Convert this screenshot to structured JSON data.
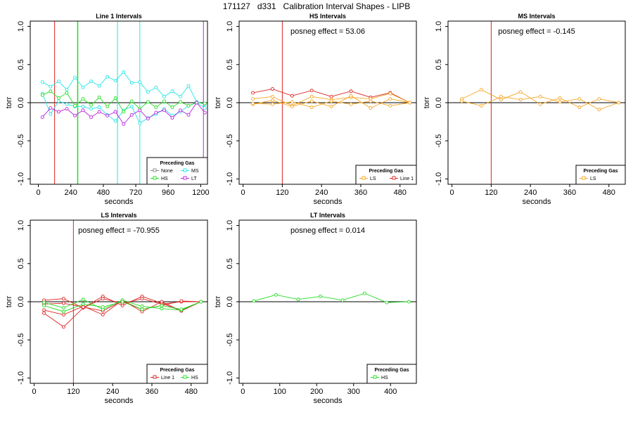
{
  "figure_title": "171127   d331   Calibration Interval Shapes - LIPB",
  "colors": {
    "None": "#888888",
    "Line 1": "#dd2222",
    "HS": "#22dd22",
    "MS": "#22e6e6",
    "LT": "#bb22dd",
    "LS": "#f5a623",
    "vline": "#b03040"
  },
  "chart_data": [
    {
      "type": "line",
      "title": "Line 1 Intervals",
      "xlabel": "seconds",
      "ylabel": "torr",
      "xlim": [
        -60,
        1250
      ],
      "ylim": [
        -1.07,
        1.07
      ],
      "xticks": [
        0,
        240,
        480,
        720,
        960,
        1200
      ],
      "yticks": [
        -1.0,
        -0.5,
        0.0,
        0.5,
        1.0
      ],
      "annotation": "",
      "vlines": [
        {
          "x": 120,
          "color": "Line 1"
        },
        {
          "x": 290,
          "color": "HS"
        },
        {
          "x": 292,
          "color": "HS"
        },
        {
          "x": 290,
          "color": "HS"
        },
        {
          "x": 585,
          "color": "MS"
        },
        {
          "x": 750,
          "color": "MS"
        },
        {
          "x": 1220,
          "color": "LT"
        }
      ],
      "legend": {
        "title": "Preceding Gas",
        "entries": [
          "None",
          "MS",
          "HS",
          "LT"
        ]
      },
      "series": [
        {
          "name": "MS",
          "x": [
            30,
            90,
            150,
            210,
            270,
            330,
            390,
            450,
            510,
            570,
            630,
            690,
            750,
            810,
            870,
            930,
            990,
            1050,
            1110,
            1170,
            1230
          ],
          "y": [
            0.27,
            0.21,
            0.28,
            0.17,
            0.33,
            0.2,
            0.28,
            0.22,
            0.34,
            0.29,
            0.4,
            0.26,
            0.27,
            0.14,
            0.2,
            0.08,
            0.15,
            0.08,
            0.22,
            0.01,
            -0.02
          ]
        },
        {
          "name": "MS",
          "x": [
            30,
            90,
            150,
            210,
            270,
            330,
            390,
            450,
            510,
            570,
            630,
            690,
            750,
            810,
            870,
            930,
            990,
            1050,
            1110,
            1170,
            1230
          ],
          "y": [
            0.12,
            -0.15,
            0.02,
            -0.02,
            -0.05,
            -0.05,
            -0.08,
            -0.06,
            -0.16,
            -0.24,
            -0.1,
            -0.05,
            -0.27,
            -0.2,
            -0.15,
            -0.08,
            -0.17,
            -0.12,
            -0.04,
            0.0,
            -0.07
          ]
        },
        {
          "name": "HS",
          "x": [
            30,
            90,
            150,
            210,
            270,
            330,
            390,
            450,
            510,
            570,
            630,
            690,
            750,
            810,
            870,
            930,
            990,
            1050,
            1110,
            1170,
            1230
          ],
          "y": [
            0.1,
            0.15,
            0.06,
            0.13,
            -0.04,
            0.05,
            -0.03,
            0.07,
            -0.05,
            0.06,
            -0.12,
            0.02,
            -0.08,
            0.01,
            -0.06,
            0.02,
            -0.06,
            0.01,
            -0.04,
            0.0,
            -0.01
          ]
        },
        {
          "name": "LT",
          "x": [
            30,
            90,
            150,
            210,
            270,
            330,
            390,
            450,
            510,
            570,
            630,
            690,
            750,
            810,
            870,
            930,
            990,
            1050,
            1110,
            1170,
            1230
          ],
          "y": [
            -0.19,
            -0.07,
            -0.12,
            -0.08,
            -0.17,
            -0.1,
            -0.19,
            -0.12,
            -0.17,
            -0.12,
            -0.28,
            -0.16,
            -0.1,
            -0.21,
            -0.13,
            -0.1,
            -0.2,
            -0.1,
            -0.16,
            0.0,
            -0.13
          ]
        }
      ]
    },
    {
      "type": "line",
      "title": "HS Intervals",
      "xlabel": "seconds",
      "ylabel": "torr",
      "xlim": [
        -12,
        530
      ],
      "ylim": [
        -1.07,
        1.07
      ],
      "xticks": [
        0,
        120,
        240,
        360,
        480
      ],
      "yticks": [
        -1.0,
        -0.5,
        0.0,
        0.5,
        1.0
      ],
      "annotation": "posneg effect = 53.06",
      "vlines": [
        {
          "x": 120,
          "color": "Line 1"
        }
      ],
      "legend": {
        "title": "Preceding Gas",
        "entries": [
          "LS",
          "Line 1"
        ]
      },
      "series": [
        {
          "name": "Line 1",
          "x": [
            30,
            90,
            150,
            210,
            270,
            330,
            390,
            450,
            510
          ],
          "y": [
            0.13,
            0.18,
            0.09,
            0.16,
            0.08,
            0.15,
            0.07,
            0.13,
            0.0
          ]
        },
        {
          "name": "LS",
          "x": [
            30,
            90,
            150,
            210,
            270,
            330,
            390,
            450,
            510
          ],
          "y": [
            0.05,
            0.08,
            -0.04,
            0.08,
            0.04,
            0.07,
            0.05,
            0.12,
            0.0
          ]
        },
        {
          "name": "LS",
          "x": [
            30,
            90,
            150,
            210,
            270,
            330,
            390,
            450,
            510
          ],
          "y": [
            -0.02,
            0.03,
            -0.05,
            0.02,
            -0.05,
            0.09,
            -0.07,
            0.05,
            0.0
          ]
        },
        {
          "name": "LS",
          "x": [
            30,
            90,
            150,
            210,
            270,
            330,
            390,
            450,
            510
          ],
          "y": [
            -0.01,
            -0.02,
            0.01,
            -0.06,
            0.02,
            -0.02,
            0.02,
            -0.04,
            0.0
          ]
        }
      ]
    },
    {
      "type": "line",
      "title": "MS Intervals",
      "xlabel": "seconds",
      "ylabel": "torr",
      "xlim": [
        -12,
        530
      ],
      "ylim": [
        -1.07,
        1.07
      ],
      "xticks": [
        0,
        120,
        240,
        360,
        480
      ],
      "yticks": [
        -1.0,
        -0.5,
        0.0,
        0.5,
        1.0
      ],
      "annotation": "posneg effect = -0.145",
      "vlines": [
        {
          "x": 120,
          "color": "Line 1"
        }
      ],
      "legend": {
        "title": "Preceding Gas",
        "entries": [
          "LS"
        ]
      },
      "series": [
        {
          "name": "LS",
          "x": [
            30,
            90,
            150,
            210,
            270,
            330,
            390,
            450,
            510
          ],
          "y": [
            0.05,
            0.17,
            0.04,
            0.14,
            -0.02,
            0.06,
            -0.06,
            0.05,
            0.0
          ]
        },
        {
          "name": "LS",
          "x": [
            30,
            90,
            150,
            210,
            270,
            330,
            390,
            450,
            510
          ],
          "y": [
            0.02,
            -0.04,
            0.08,
            0.04,
            0.08,
            0.01,
            0.05,
            -0.09,
            0.0
          ]
        }
      ]
    },
    {
      "type": "line",
      "title": "LS Intervals",
      "xlabel": "seconds",
      "ylabel": "torr",
      "xlim": [
        -12,
        530
      ],
      "ylim": [
        -1.07,
        1.07
      ],
      "xticks": [
        0,
        120,
        240,
        360,
        480
      ],
      "yticks": [
        -1.0,
        -0.5,
        0.0,
        0.5,
        1.0
      ],
      "annotation": "posneg effect = -70.955",
      "vlines": [
        {
          "x": 120,
          "color": "Line 1"
        }
      ],
      "legend": {
        "title": "Preceding Gas",
        "entries": [
          "Line 1",
          "HS"
        ]
      },
      "series": [
        {
          "name": "Line 1",
          "x": [
            30,
            90,
            150,
            210,
            270,
            330,
            390,
            450,
            510
          ],
          "y": [
            0.02,
            0.04,
            -0.08,
            0.07,
            -0.05,
            0.07,
            -0.02,
            -0.12,
            0.0
          ]
        },
        {
          "name": "Line 1",
          "x": [
            30,
            90,
            150,
            210,
            270,
            330,
            390,
            450,
            510
          ],
          "y": [
            -0.15,
            -0.33,
            -0.08,
            0.04,
            -0.02,
            0.04,
            -0.03,
            0.0,
            0.0
          ]
        },
        {
          "name": "Line 1",
          "x": [
            30,
            90,
            150,
            210,
            270,
            330,
            390,
            450,
            510
          ],
          "y": [
            -0.11,
            -0.17,
            -0.06,
            -0.17,
            0.02,
            -0.13,
            0.0,
            -0.12,
            0.0
          ]
        },
        {
          "name": "Line 1",
          "x": [
            30,
            90,
            150,
            210,
            270,
            330,
            390,
            450,
            510
          ],
          "y": [
            -0.03,
            -0.02,
            -0.07,
            -0.12,
            0.01,
            -0.1,
            -0.05,
            0.01,
            0.0
          ]
        },
        {
          "name": "HS",
          "x": [
            30,
            90,
            150,
            210,
            270,
            330,
            390,
            450,
            510
          ],
          "y": [
            -0.01,
            -0.08,
            0.03,
            -0.1,
            0.02,
            -0.06,
            -0.09,
            -0.11,
            0.0
          ]
        },
        {
          "name": "HS",
          "x": [
            30,
            90,
            150,
            210,
            270,
            330,
            390,
            450,
            510
          ],
          "y": [
            -0.05,
            -0.13,
            -0.03,
            -0.07,
            0.0,
            -0.1,
            -0.05,
            -0.1,
            0.0
          ]
        }
      ]
    },
    {
      "type": "line",
      "title": "LT Intervals",
      "xlabel": "seconds",
      "ylabel": "torr",
      "xlim": [
        -10,
        470
      ],
      "ylim": [
        -1.07,
        1.07
      ],
      "xticks": [
        0,
        100,
        200,
        300,
        400
      ],
      "yticks": [
        -1.0,
        -0.5,
        0.0,
        0.5,
        1.0
      ],
      "annotation": "posneg effect = 0.014",
      "vlines": [],
      "legend": {
        "title": "Preceding Gas",
        "entries": [
          "HS"
        ]
      },
      "series": [
        {
          "name": "HS",
          "x": [
            30,
            90,
            150,
            210,
            270,
            330,
            390,
            450
          ],
          "y": [
            0.01,
            0.09,
            0.03,
            0.07,
            0.02,
            0.11,
            -0.01,
            0.0
          ]
        }
      ]
    }
  ]
}
